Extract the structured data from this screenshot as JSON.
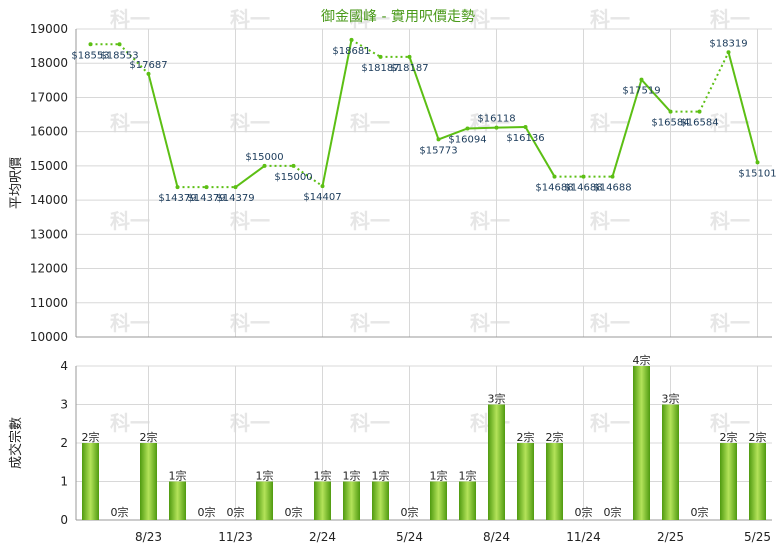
{
  "watermark": "科一",
  "colors": {
    "line": "#5cbf14",
    "bar_light": "#b4e35a",
    "bar_dark": "#4f9a10",
    "title": "#4a9a1a",
    "grid": "#d8d8d8"
  },
  "chart_data": [
    {
      "type": "line",
      "title": "御金國峰 - 實用呎價走勢",
      "ylabel": "平均呎價",
      "ylim": [
        10000,
        19000
      ],
      "yticks": [
        "10000",
        "11000",
        "12000",
        "13000",
        "14000",
        "15000",
        "16000",
        "17000",
        "18000",
        "19000"
      ],
      "values": [
        18553,
        18553,
        17687,
        14379,
        14379,
        14379,
        15000,
        15000,
        14407,
        18681,
        18187,
        18187,
        15773,
        16094,
        16118,
        16136,
        14688,
        14688,
        14688,
        17519,
        16584,
        16584,
        18319,
        15101
      ],
      "labels": [
        "$18553",
        "$18553",
        "$17687",
        "$14379",
        "$14379",
        "$14379",
        "$15000",
        "$15000",
        "$14407",
        "$18681",
        "$18187",
        "$18187",
        "$15773",
        "$16094",
        "$16118",
        "$16136",
        "$14688",
        "$14688",
        "$14688",
        "$17519",
        "$16584",
        "$16584",
        "$18319",
        "$15101"
      ],
      "interpolated": [
        false,
        true,
        false,
        false,
        true,
        false,
        false,
        true,
        false,
        false,
        true,
        false,
        false,
        false,
        false,
        false,
        false,
        true,
        false,
        false,
        false,
        true,
        false,
        false
      ]
    },
    {
      "type": "bar",
      "ylabel": "成交宗數",
      "ylim": [
        0,
        4
      ],
      "yticks": [
        "0",
        "1",
        "2",
        "3",
        "4"
      ],
      "values": [
        2,
        0,
        2,
        1,
        0,
        0,
        1,
        0,
        1,
        1,
        1,
        0,
        1,
        1,
        3,
        2,
        2,
        0,
        0,
        4,
        3,
        0,
        2,
        2
      ],
      "labels": [
        "2宗",
        "0宗",
        "2宗",
        "1宗",
        "0宗",
        "0宗",
        "1宗",
        "0宗",
        "1宗",
        "1宗",
        "1宗",
        "0宗",
        "1宗",
        "1宗",
        "3宗",
        "2宗",
        "2宗",
        "0宗",
        "0宗",
        "4宗",
        "3宗",
        "0宗",
        "2宗",
        "2宗"
      ],
      "xticks": [
        "8/23",
        "11/23",
        "2/24",
        "5/24",
        "8/24",
        "11/24",
        "2/25",
        "5/25"
      ]
    }
  ]
}
